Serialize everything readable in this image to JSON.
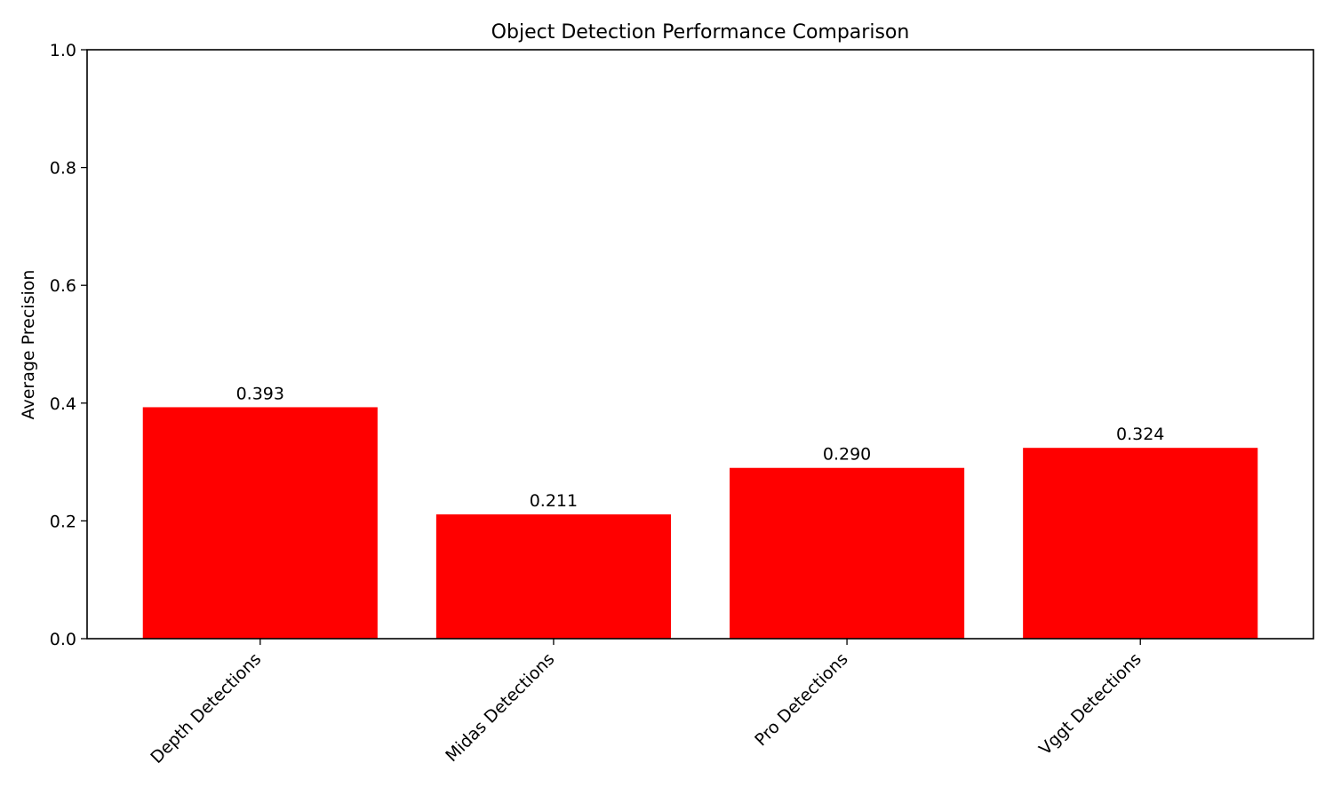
{
  "chart_data": {
    "type": "bar",
    "title": "Object Detection Performance Comparison",
    "xlabel": "",
    "ylabel": "Average Precision",
    "categories": [
      "Depth Detections",
      "Midas Detections",
      "Pro Detections",
      "Vggt Detections"
    ],
    "values": [
      0.393,
      0.211,
      0.29,
      0.324
    ],
    "value_labels": [
      "0.393",
      "0.211",
      "0.290",
      "0.324"
    ],
    "ylim": [
      0,
      1.0
    ],
    "yticks": [
      0.0,
      0.2,
      0.4,
      0.6,
      0.8,
      1.0
    ],
    "ytick_labels": [
      "0.0",
      "0.2",
      "0.4",
      "0.6",
      "0.8",
      "1.0"
    ],
    "bar_color": "#ff0000",
    "grid": false,
    "legend": "none"
  }
}
